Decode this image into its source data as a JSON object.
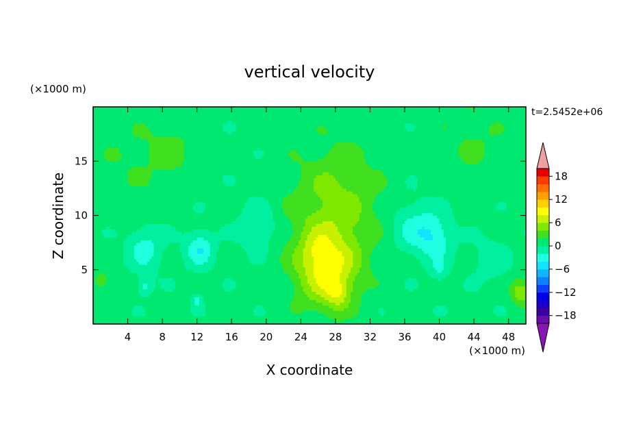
{
  "chart_data": {
    "type": "heatmap",
    "title": "vertical velocity",
    "xlabel": "X coordinate",
    "ylabel": "Z coordinate",
    "x_units_label": "(×1000 m)",
    "y_units_label": "(×1000 m)",
    "time_label": "t=2.5452e+06",
    "xlim": [
      0,
      50
    ],
    "ylim": [
      0,
      20
    ],
    "x_ticks": [
      4,
      8,
      12,
      16,
      20,
      24,
      28,
      32,
      36,
      40,
      44,
      48
    ],
    "y_ticks": [
      5,
      10,
      15
    ],
    "colorbar": {
      "min": -20,
      "max": 20,
      "step": 2,
      "tick_values": [
        18,
        12,
        6,
        0,
        -6,
        -12,
        -18
      ],
      "colors": [
        "#6a0dad",
        "#3a00a0",
        "#1a00c8",
        "#0000e6",
        "#1040ff",
        "#1080ff",
        "#10b4ff",
        "#10e4ff",
        "#20ffe0",
        "#00f0a0",
        "#00e870",
        "#40e020",
        "#80e800",
        "#c8f000",
        "#ffff00",
        "#ffd000",
        "#ffa000",
        "#ff7000",
        "#ff3c00",
        "#e60000"
      ],
      "lower_extend_color": "#8a14b4",
      "upper_extend_color": "#f0a0a0"
    },
    "features": [
      {
        "x": 27,
        "z": 5,
        "w": 3.5,
        "value": 7.5
      },
      {
        "x": 28.3,
        "z": 2.8,
        "w": 1.3,
        "value": 3.5
      },
      {
        "x": 25.5,
        "z": 7,
        "w": 1.6,
        "value": 1.5
      },
      {
        "x": 28,
        "z": 10,
        "w": 5,
        "value": 3
      },
      {
        "x": 28,
        "z": 13,
        "w": 5,
        "value": 1.5
      },
      {
        "x": 49.5,
        "z": 3,
        "w": 1.2,
        "value": 5
      },
      {
        "x": 1,
        "z": 4,
        "w": 1,
        "value": 2.5
      },
      {
        "x": 9,
        "z": 16,
        "w": 3,
        "value": 1.8
      },
      {
        "x": 4,
        "z": 15,
        "w": 4,
        "value": 1.2
      },
      {
        "x": 44,
        "z": 17,
        "w": 4,
        "value": 1.5
      },
      {
        "x": 6,
        "z": 7,
        "w": 2,
        "value": -3.5
      },
      {
        "x": 12.3,
        "z": 7,
        "w": 1.6,
        "value": -4.5
      },
      {
        "x": 19,
        "z": 9,
        "w": 2,
        "value": -3
      },
      {
        "x": 37,
        "z": 9,
        "w": 2.5,
        "value": -3
      },
      {
        "x": 39.5,
        "z": 8,
        "w": 2,
        "value": -4
      },
      {
        "x": 46,
        "z": 6,
        "w": 2,
        "value": -2
      },
      {
        "x": 6,
        "z": 3.5,
        "w": 0.8,
        "value": -3.5
      },
      {
        "x": 12,
        "z": 2.2,
        "w": 0.6,
        "value": -3
      },
      {
        "x": 40,
        "z": 5,
        "w": 1,
        "value": -2.5
      }
    ]
  }
}
